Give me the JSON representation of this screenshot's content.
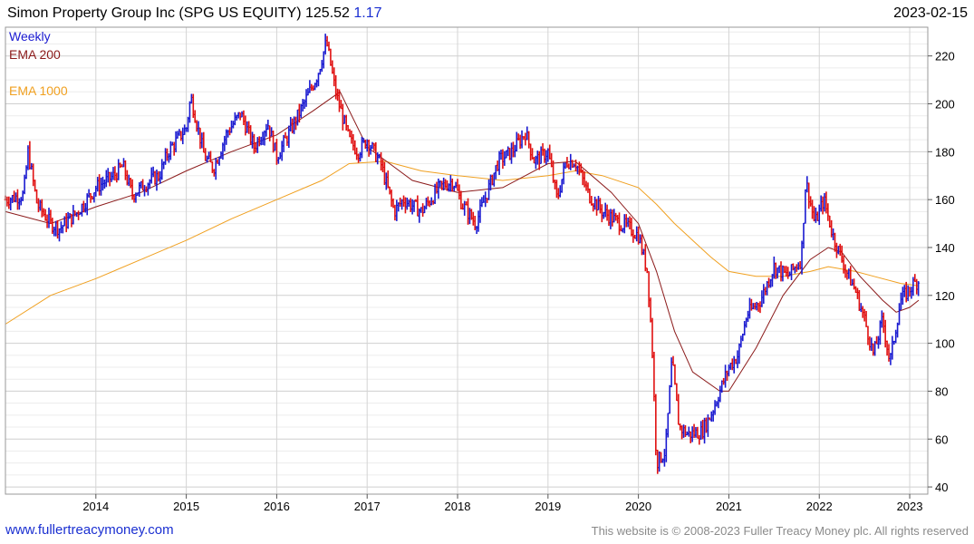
{
  "header": {
    "title": "Simon Property Group Inc (SPG US EQUITY)",
    "last": "125.52",
    "change": "1.17",
    "date": "2023-02-15"
  },
  "footer": {
    "site": "www.fullertreacymoney.com",
    "copyright": "This website is © 2008-2023 Fuller Treacy Money plc. All rights reserved"
  },
  "colors": {
    "up_bar": "#1a1ad0",
    "down_bar": "#e01010",
    "ema200": "#8b1a1a",
    "ema1000": "#f0a020",
    "grid": "#d9d9d9",
    "weekly_label": "#1a1ad0"
  },
  "chart_data": {
    "type": "line",
    "price_style": "weekly OHLC bars",
    "legend": [
      "Weekly",
      "EMA 200",
      "EMA 1000"
    ],
    "legend_placement": "top-left",
    "y_axis_side": "right",
    "ylim": [
      37,
      232
    ],
    "y_ticks": [
      40,
      60,
      80,
      100,
      120,
      140,
      160,
      180,
      200,
      220
    ],
    "xlim": [
      2013.0,
      2023.2
    ],
    "x_ticks": [
      2014,
      2015,
      2016,
      2017,
      2018,
      2019,
      2020,
      2021,
      2022,
      2023
    ],
    "grid": true,
    "price": {
      "name": "Weekly",
      "x": [
        2013.0,
        2013.2,
        2013.25,
        2013.35,
        2013.5,
        2013.6,
        2013.8,
        2014.0,
        2014.2,
        2014.3,
        2014.4,
        2014.6,
        2014.7,
        2014.8,
        2015.0,
        2015.05,
        2015.2,
        2015.3,
        2015.45,
        2015.6,
        2015.75,
        2015.9,
        2016.0,
        2016.1,
        2016.3,
        2016.45,
        2016.55,
        2016.65,
        2016.8,
        2016.9,
        2017.0,
        2017.15,
        2017.3,
        2017.4,
        2017.6,
        2017.8,
        2017.95,
        2018.05,
        2018.2,
        2018.3,
        2018.45,
        2018.6,
        2018.75,
        2018.85,
        2019.0,
        2019.1,
        2019.2,
        2019.3,
        2019.45,
        2019.6,
        2019.8,
        2019.9,
        2020.0,
        2020.1,
        2020.15,
        2020.2,
        2020.3,
        2020.37,
        2020.45,
        2020.55,
        2020.7,
        2020.8,
        2020.9,
        2021.0,
        2021.1,
        2021.2,
        2021.35,
        2021.5,
        2021.65,
        2021.8,
        2021.85,
        2021.95,
        2022.05,
        2022.15,
        2022.3,
        2022.4,
        2022.5,
        2022.6,
        2022.7,
        2022.78,
        2022.9,
        2023.05,
        2023.1
      ],
      "y": [
        160,
        162,
        180,
        158,
        150,
        148,
        155,
        165,
        170,
        174,
        162,
        168,
        170,
        180,
        190,
        203,
        178,
        173,
        188,
        196,
        182,
        192,
        178,
        185,
        200,
        212,
        226,
        205,
        185,
        180,
        185,
        175,
        155,
        160,
        155,
        165,
        168,
        158,
        150,
        160,
        176,
        180,
        188,
        176,
        180,
        160,
        176,
        176,
        162,
        155,
        150,
        148,
        145,
        130,
        100,
        50,
        55,
        93,
        65,
        62,
        63,
        70,
        80,
        90,
        95,
        112,
        118,
        132,
        128,
        135,
        168,
        150,
        160,
        145,
        130,
        122,
        110,
        95,
        110,
        92,
        118,
        125,
        126
      ]
    },
    "series": [
      {
        "name": "EMA 200",
        "x": [
          2013.0,
          2013.5,
          2014.0,
          2014.5,
          2015.0,
          2015.5,
          2016.0,
          2016.4,
          2016.7,
          2017.0,
          2017.5,
          2018.0,
          2018.5,
          2019.0,
          2019.3,
          2019.7,
          2020.0,
          2020.2,
          2020.4,
          2020.6,
          2020.9,
          2021.0,
          2021.3,
          2021.6,
          2021.9,
          2022.1,
          2022.25,
          2022.45,
          2022.7,
          2022.85,
          2023.0,
          2023.1
        ],
        "y": [
          155,
          150,
          157,
          163,
          172,
          180,
          187,
          197,
          205,
          182,
          168,
          163,
          165,
          175,
          176,
          163,
          150,
          130,
          105,
          88,
          80,
          80,
          98,
          120,
          135,
          140,
          138,
          128,
          118,
          113,
          115,
          118
        ]
      },
      {
        "name": "EMA 1000",
        "x": [
          2013.0,
          2013.5,
          2014.0,
          2014.5,
          2015.0,
          2015.5,
          2016.0,
          2016.5,
          2016.8,
          2017.2,
          2017.6,
          2018.0,
          2018.5,
          2019.0,
          2019.3,
          2019.6,
          2020.0,
          2020.2,
          2020.4,
          2020.6,
          2020.8,
          2021.0,
          2021.3,
          2021.6,
          2021.9,
          2022.1,
          2022.4,
          2022.6,
          2022.9,
          2023.1
        ],
        "y": [
          108,
          120,
          127,
          135,
          143,
          152,
          160,
          168,
          175,
          176,
          172,
          170,
          168,
          170,
          172,
          170,
          165,
          158,
          150,
          143,
          136,
          130,
          128,
          128,
          130,
          132,
          130,
          128,
          125,
          124
        ]
      }
    ]
  }
}
